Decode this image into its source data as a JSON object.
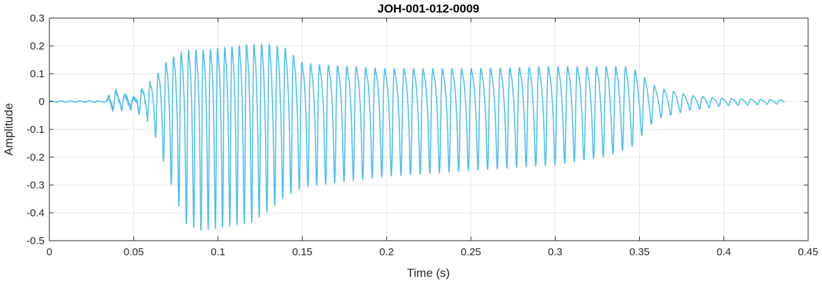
{
  "chart_data": {
    "type": "line",
    "title": "JOH-001-012-0009",
    "xlabel": "Time (s)",
    "ylabel": "Amplitude",
    "xlim": [
      0,
      0.45
    ],
    "ylim": [
      -0.5,
      0.3
    ],
    "grid": true,
    "x_ticks": [
      0,
      0.05,
      0.1,
      0.15,
      0.2,
      0.25,
      0.3,
      0.35,
      0.4,
      0.45
    ],
    "x_tick_labels": [
      "0",
      "0.05",
      "0.1",
      "0.15",
      "0.2",
      "0.25",
      "0.3",
      "0.35",
      "0.4",
      "0.45"
    ],
    "y_ticks": [
      0.3,
      0.2,
      0.1,
      0,
      -0.1,
      -0.2,
      -0.3,
      -0.4,
      -0.5
    ],
    "y_tick_labels": [
      "0.3",
      "0.2",
      "0.1",
      "0",
      "-0.1",
      "-0.2",
      "-0.3",
      "-0.4",
      "-0.5"
    ],
    "series": [
      {
        "color": "#4DBEEE",
        "sample_rate_hz": 8000,
        "duration_s": 0.436,
        "envelope": {
          "t": [
            0,
            0.034,
            0.036,
            0.05,
            0.06,
            0.07,
            0.08,
            0.09,
            0.1,
            0.11,
            0.12,
            0.13,
            0.14,
            0.15,
            0.16,
            0.2,
            0.25,
            0.3,
            0.33,
            0.345,
            0.36,
            0.38,
            0.4,
            0.436
          ],
          "max": [
            0.003,
            0.003,
            0.06,
            0.02,
            0.09,
            0.2,
            0.25,
            0.25,
            0.26,
            0.27,
            0.28,
            0.28,
            0.26,
            0.19,
            0.18,
            0.16,
            0.16,
            0.17,
            0.17,
            0.17,
            0.07,
            0.03,
            0.015,
            0.008
          ],
          "min": [
            -0.003,
            -0.003,
            -0.03,
            -0.02,
            -0.07,
            -0.25,
            -0.42,
            -0.45,
            -0.44,
            -0.43,
            -0.42,
            -0.38,
            -0.33,
            -0.3,
            -0.29,
            -0.26,
            -0.24,
            -0.22,
            -0.19,
            -0.16,
            -0.06,
            -0.03,
            -0.015,
            -0.008
          ]
        }
      }
    ]
  }
}
